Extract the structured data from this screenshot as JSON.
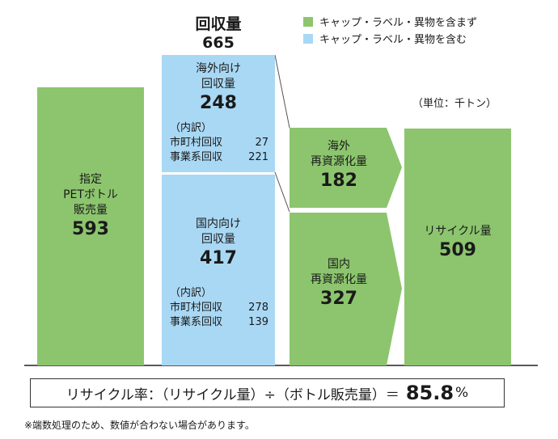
{
  "header": {
    "title": "回収量",
    "value": "665"
  },
  "legend": [
    {
      "label": "キャップ・ラベル・異物を含まず",
      "color": "#8cc56e"
    },
    {
      "label": "キャップ・ラベル・異物を含む",
      "color": "#a9d8f4"
    }
  ],
  "unit_note": "（単位：千トン）",
  "sales": {
    "label_1": "指定",
    "label_2": "PETボトル",
    "label_3": "販売量",
    "value": "593"
  },
  "overseas_collection": {
    "label_1": "海外向け",
    "label_2": "回収量",
    "value": "248",
    "breakdown_title": "（内訳）",
    "row1_label": "市町村回収",
    "row1_value": "27",
    "row2_label": "事業系回収",
    "row2_value": "221"
  },
  "domestic_collection": {
    "label_1": "国内向け",
    "label_2": "回収量",
    "value": "417",
    "breakdown_title": "（内訳）",
    "row1_label": "市町村回収",
    "row1_value": "278",
    "row2_label": "事業系回収",
    "row2_value": "139"
  },
  "overseas_recycle": {
    "label_1": "海外",
    "label_2": "再資源化量",
    "value": "182"
  },
  "domestic_recycle": {
    "label_1": "国内",
    "label_2": "再資源化量",
    "value": "327"
  },
  "recycle_total": {
    "label": "リサイクル量",
    "value": "509"
  },
  "formula": {
    "text": "リサイクル率：（リサイクル量）÷（ボトル販売量）＝",
    "value": "85.8",
    "unit": "%"
  },
  "footnote": "※端数処理のため、数値が合わない場合があります。"
}
